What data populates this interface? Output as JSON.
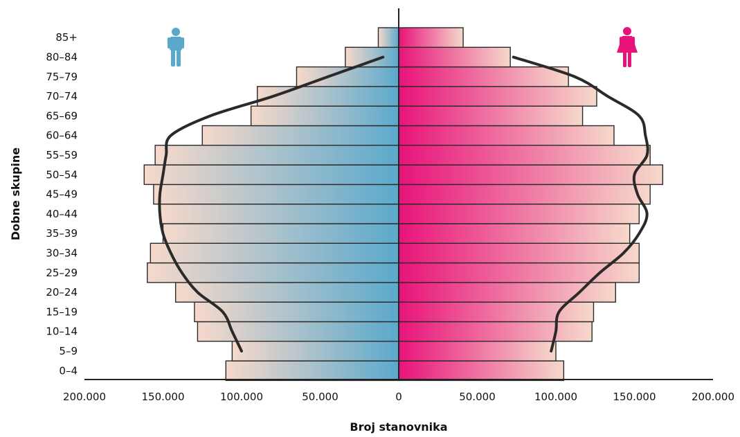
{
  "chart_data": {
    "type": "bar",
    "subtype": "population-pyramid",
    "xlabel": "Broj stanovnika",
    "ylabel": "Dobne skupine",
    "xlim": [
      -200000,
      200000
    ],
    "x_ticks": [
      "200.000",
      "150.000",
      "100.000",
      "50.000",
      "0",
      "50.000",
      "100.000",
      "150.000",
      "200.000"
    ],
    "categories": [
      "0–4",
      "5–9",
      "10–14",
      "15–19",
      "20–24",
      "25–29",
      "30–34",
      "35–39",
      "40–44",
      "45–49",
      "50–54",
      "55–59",
      "60–64",
      "65–69",
      "70–74",
      "75–79",
      "80–84",
      "85+"
    ],
    "series": [
      {
        "side": "left",
        "icon": "male-icon",
        "color": "#5aa9cc",
        "values": [
          110000,
          106000,
          128000,
          130000,
          142000,
          160000,
          158000,
          150000,
          152000,
          156000,
          162000,
          155000,
          125000,
          94000,
          90000,
          65000,
          34000,
          13000
        ]
      },
      {
        "side": "right",
        "icon": "female-icon",
        "color": "#e8137a",
        "values": [
          105000,
          100000,
          123000,
          124000,
          138000,
          153000,
          153000,
          147000,
          153000,
          160000,
          168000,
          160000,
          137000,
          117000,
          126000,
          108000,
          71000,
          41000
        ]
      }
    ],
    "overlay_lines": [
      {
        "side": "left",
        "from_category": "5–9",
        "values": [
          100000,
          106000,
          112000,
          128000,
          138000,
          145000,
          150000,
          152000,
          152000,
          150000,
          148000,
          145000,
          120000,
          80000,
          45000,
          10000
        ]
      },
      {
        "side": "right",
        "from_category": "5–9",
        "values": [
          97000,
          100000,
          102000,
          115000,
          128000,
          143000,
          153000,
          158000,
          152000,
          150000,
          158000,
          157000,
          153000,
          133000,
          112000,
          73000
        ]
      }
    ],
    "grid": false
  }
}
